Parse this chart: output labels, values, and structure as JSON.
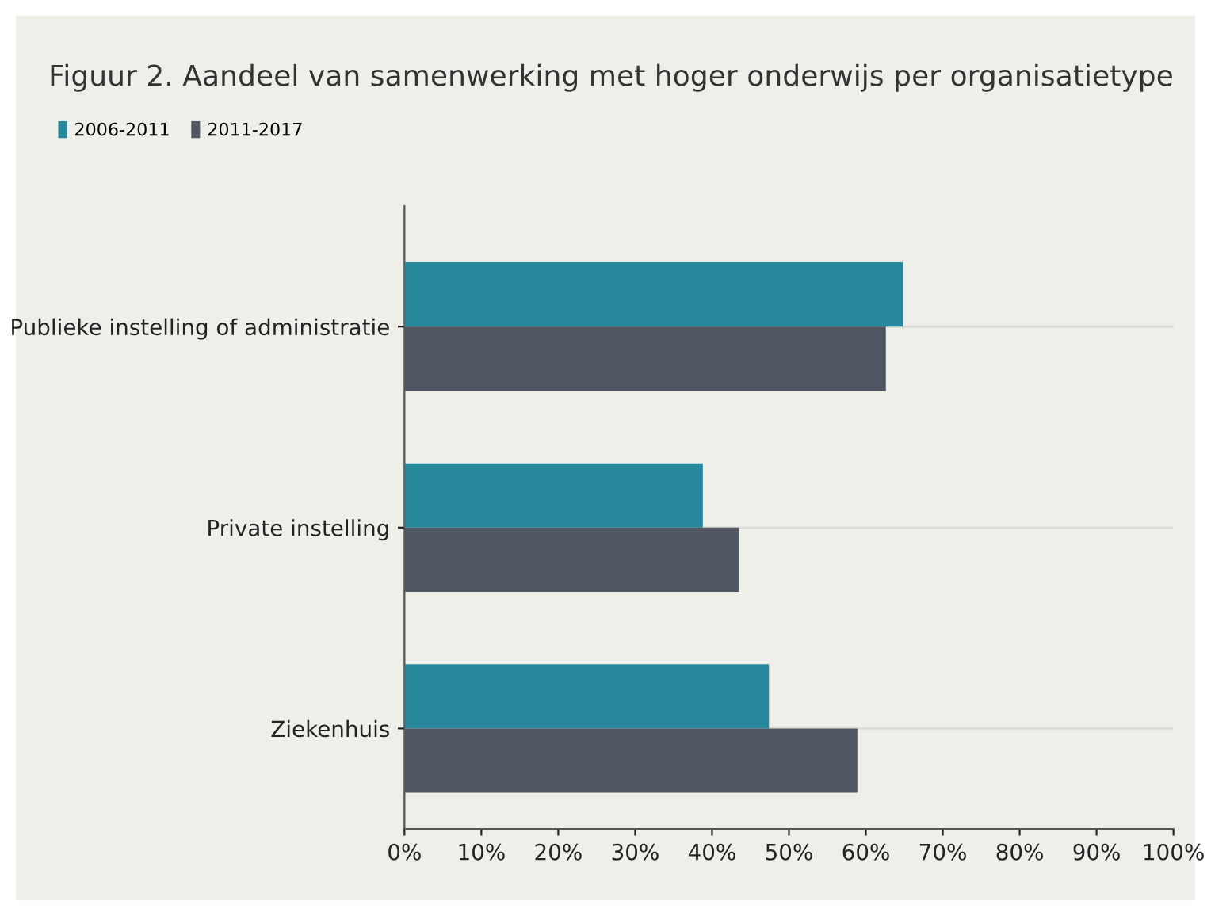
{
  "chart_data": {
    "type": "bar",
    "orientation": "horizontal",
    "title": "Figuur 2. Aandeel van samenwerking met hoger onderwijs per organisatietype",
    "categories": [
      "Publieke instelling of administratie",
      "Private instelling",
      "Ziekenhuis"
    ],
    "series": [
      {
        "name": "2006-2011",
        "color": "#27889b",
        "values": [
          64.8,
          38.8,
          47.4
        ]
      },
      {
        "name": "2011-2017",
        "color": "#505763",
        "values": [
          62.6,
          43.5,
          58.9
        ]
      }
    ],
    "xlim": [
      0,
      100
    ],
    "xticks": [
      {
        "value": 0,
        "label": "0%"
      },
      {
        "value": 10,
        "label": "10%"
      },
      {
        "value": 20,
        "label": "20%"
      },
      {
        "value": 30,
        "label": "30%"
      },
      {
        "value": 40,
        "label": "40%"
      },
      {
        "value": 50,
        "label": "50%"
      },
      {
        "value": 60,
        "label": "60%"
      },
      {
        "value": 70,
        "label": "70%"
      },
      {
        "value": 80,
        "label": "80%"
      },
      {
        "value": 90,
        "label": "90%"
      },
      {
        "value": 100,
        "label": "100%"
      }
    ],
    "grid": "y",
    "legend": "top left"
  }
}
